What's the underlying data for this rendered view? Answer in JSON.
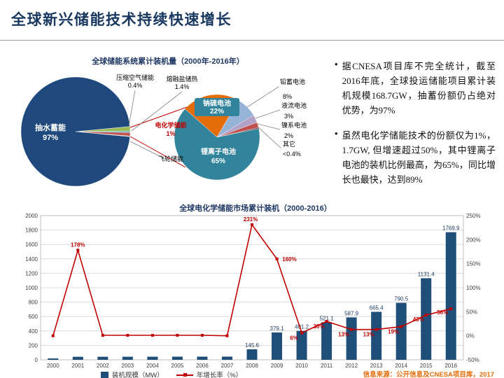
{
  "slide": {
    "title": "全球新兴储能技术持续快速增长",
    "source_note": "信息来源：公开信息及CNESA项目库，2017"
  },
  "bullets": [
    "据CNESA项目库不完全统计，截至2016年底，全球投运储能项目累计装机规模168.7GW，抽蓄份额仍占绝对优势，为97%",
    "虽然电化学储能技术的份额仅为1%，1.7GW, 但增速超过50%，其中锂离子电池的装机比例最高，为65%，同比增长也最快，达到89%"
  ],
  "chart_data": [
    {
      "type": "pie",
      "title": "全球储能系统累计装机量（2000年-2016年）",
      "start_angle": -5.4,
      "slices": [
        {
          "label": "熔融盐储热",
          "pct": 1.4,
          "pct_label": "1.4%",
          "color": "#9BBB59"
        },
        {
          "label": "压缩空气储能",
          "pct": 0.4,
          "pct_label": "0.4%",
          "color": "#4BACC6"
        },
        {
          "label": "电化学储能",
          "pct": 1.0,
          "pct_label": "1%",
          "color": "#C0504D"
        },
        {
          "label": "飞轮储能",
          "pct": 0.2,
          "pct_label": "",
          "color": "#A6A6A6"
        },
        {
          "label": "抽水蓄能",
          "pct": 97.0,
          "pct_label": "97%",
          "color": "#1F497D"
        }
      ]
    },
    {
      "type": "pie",
      "start_angle": -138.6,
      "slices": [
        {
          "label": "钠硫电池",
          "pct": 22.0,
          "pct_label": "22%",
          "color": "#E46D0A"
        },
        {
          "label": "铅蓄电池",
          "pct": 8.0,
          "pct_label": "8%",
          "color": "#95B3D7"
        },
        {
          "label": "液流电池",
          "pct": 3.0,
          "pct_label": "3%",
          "color": "#B3A2C7"
        },
        {
          "label": "镍系电池",
          "pct": 2.0,
          "pct_label": "2%",
          "color": "#C0504D"
        },
        {
          "label": "其它",
          "pct": 0.4,
          "pct_label": "<0.4%",
          "color": "#622423"
        },
        {
          "label": "锂离子电池",
          "pct": 65.0,
          "pct_label": "65%",
          "color": "#31849B"
        }
      ]
    },
    {
      "type": "bar+line",
      "title": "全球电化学储能市场累计装机（2000-2016）",
      "categories": [
        "2000",
        "2001",
        "2002",
        "2003",
        "2004",
        "2005",
        "2006",
        "2007",
        "2008",
        "2009",
        "2010",
        "2011",
        "2012",
        "2013",
        "2014",
        "2015",
        "2016"
      ],
      "series": [
        {
          "name": "装机规模（MW）",
          "chart": "bar",
          "color": "#1F4E79",
          "values": [
            15,
            41.7,
            42.1,
            42.5,
            42.9,
            43.3,
            43.7,
            44,
            145.6,
            379.1,
            401.2,
            521.1,
            587.9,
            665.4,
            790.5,
            1131.4,
            1769.9
          ],
          "labels": [
            "",
            "",
            "",
            "",
            "",
            "",
            "",
            "",
            "145.6",
            "379.1",
            "401.2",
            "521.1",
            "587.9",
            "665.4",
            "790.5",
            "1131.4",
            "1769.9"
          ]
        },
        {
          "name": "年增长率（%）",
          "chart": "line",
          "color": "#C00000",
          "values": [
            0,
            178,
            1,
            1,
            1,
            1,
            1,
            0,
            231,
            160,
            6,
            30,
            13,
            13,
            19,
            43,
            56
          ],
          "labels": [
            "",
            "178%",
            "",
            "",
            "",
            "",
            "",
            "",
            "231%",
            "160%",
            "6%",
            "30%",
            "13%",
            "13%",
            "19%",
            "43%",
            "56%"
          ]
        }
      ],
      "y_left": {
        "min": 0,
        "max": 2000,
        "step": 200
      },
      "y_right": {
        "min": -50,
        "max": 250,
        "step": 50,
        "suffix": "%"
      },
      "legend_position": "bottom"
    }
  ]
}
